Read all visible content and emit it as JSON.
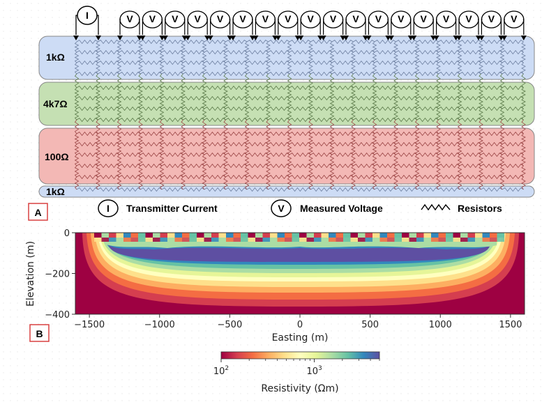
{
  "panel_a": {
    "label": "A",
    "layers": [
      {
        "label": "1kΩ",
        "fill": "#cddcf5"
      },
      {
        "label": "4k7Ω",
        "fill": "#c5e0b3"
      },
      {
        "label": "100Ω",
        "fill": "#f3b8b5"
      },
      {
        "label": "1kΩ",
        "fill": "#cddcf5"
      }
    ],
    "current_symbol": "I",
    "voltage_symbol": "V",
    "voltmeter_count": 18,
    "legend": {
      "current_symbol": "I",
      "current_label": "Transmitter Current",
      "voltage_symbol": "V",
      "voltage_label": "Measured Voltage",
      "resistor_label": "Resistors"
    }
  },
  "panel_b": {
    "label": "B",
    "chart_data": {
      "type": "heatmap",
      "xlabel": "Easting (m)",
      "ylabel": "Elevation (m)",
      "xlim": [
        -1600,
        1600
      ],
      "ylim": [
        -400,
        0
      ],
      "xticks": [
        "−1500",
        "−1000",
        "−500",
        "0",
        "500",
        "1000",
        "1500"
      ],
      "xtick_values": [
        -1500,
        -1000,
        -500,
        0,
        500,
        1000,
        1500
      ],
      "yticks": [
        "0",
        "−200",
        "−400"
      ],
      "ytick_values": [
        0,
        -200,
        -400
      ],
      "colorscale": "Spectral (log)",
      "colorbar": {
        "label": "Resistivity (Ωm)",
        "range": [
          100,
          5000
        ],
        "tick_base": "10",
        "tick_exponents": [
          "2",
          "3"
        ],
        "tick_values": [
          100,
          1000
        ]
      }
    }
  }
}
